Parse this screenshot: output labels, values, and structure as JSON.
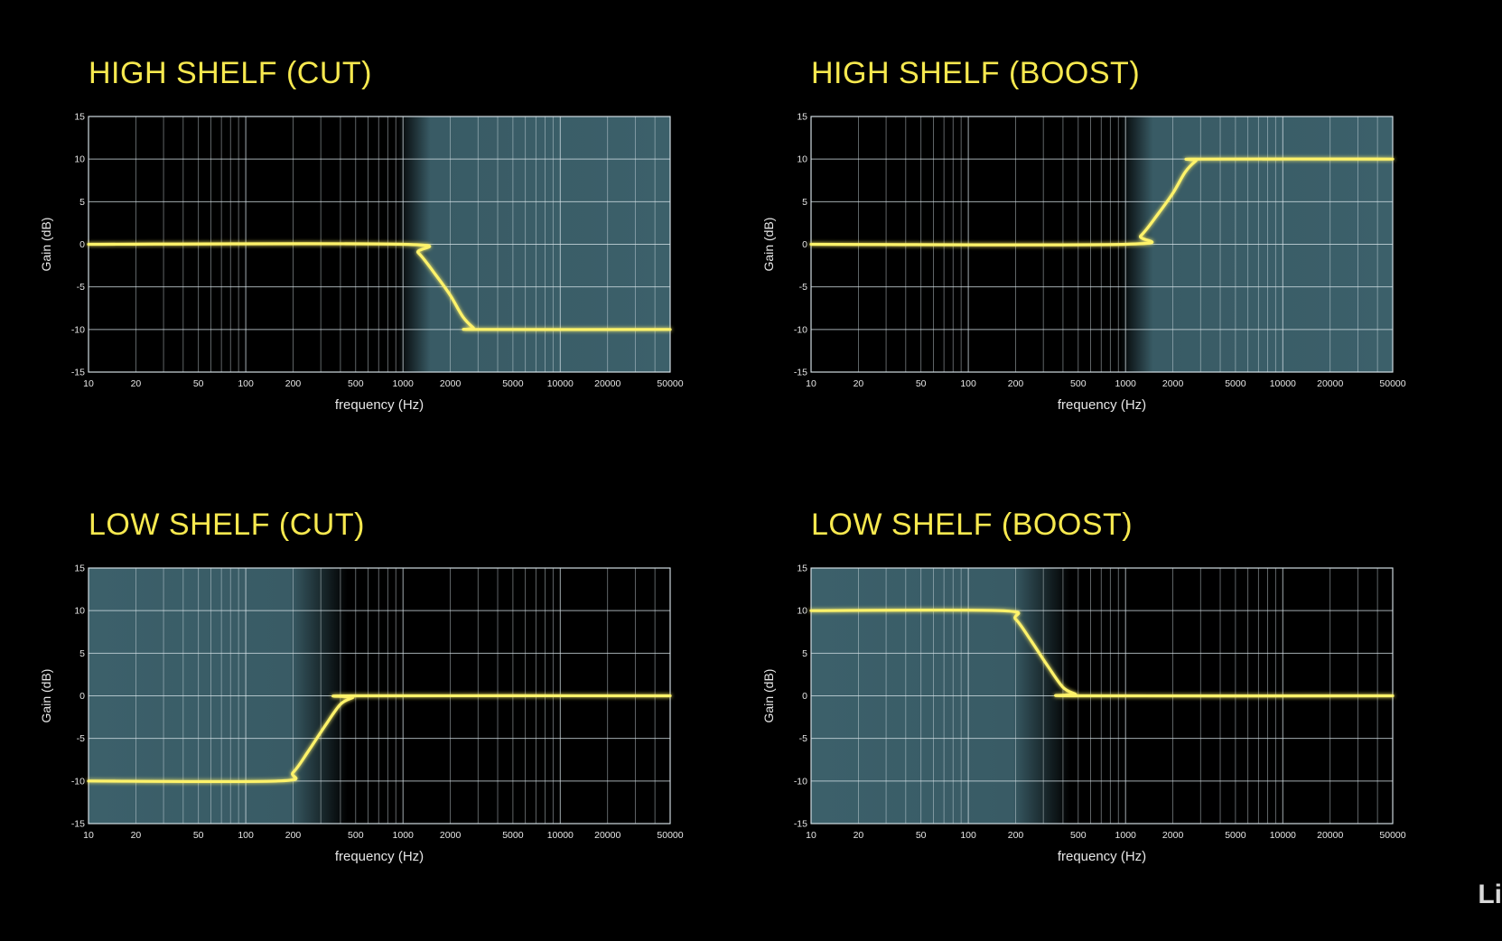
{
  "chart_data": [
    {
      "type": "line",
      "title": "HIGH SHELF (CUT)",
      "xlabel": "frequency (Hz)",
      "ylabel": "Gain (dB)",
      "x_scale": "log",
      "xlim": [
        10,
        50000
      ],
      "ylim": [
        -15,
        15
      ],
      "x_ticks": [
        "10",
        "20",
        "50",
        "100",
        "200",
        "500",
        "1000",
        "2000",
        "5000",
        "10000",
        "20000",
        "50000"
      ],
      "y_ticks": [
        "15",
        "10",
        "5",
        "0",
        "-5",
        "-10",
        "-15"
      ],
      "grid": true,
      "shaded_band": "1000-50000 Hz",
      "series": [
        {
          "x": [
            10,
            1000,
            1250,
            1600,
            2000,
            2400,
            2800,
            3000,
            50000
          ],
          "y": [
            0,
            0,
            -1,
            -3.5,
            -6,
            -8.5,
            -9.8,
            -10,
            -10
          ]
        }
      ]
    },
    {
      "type": "line",
      "title": "HIGH SHELF (BOOST)",
      "xlabel": "frequency (Hz)",
      "ylabel": "Gain (dB)",
      "x_scale": "log",
      "xlim": [
        10,
        50000
      ],
      "ylim": [
        -15,
        15
      ],
      "x_ticks": [
        "10",
        "20",
        "50",
        "100",
        "200",
        "500",
        "1000",
        "2000",
        "5000",
        "10000",
        "20000",
        "50000"
      ],
      "y_ticks": [
        "15",
        "10",
        "5",
        "0",
        "-5",
        "-10",
        "-15"
      ],
      "grid": true,
      "shaded_band": "1000-50000 Hz",
      "series": [
        {
          "x": [
            10,
            1000,
            1250,
            1600,
            2000,
            2400,
            2800,
            3000,
            50000
          ],
          "y": [
            0,
            0,
            1,
            3.5,
            6,
            8.5,
            9.8,
            10,
            10
          ]
        }
      ]
    },
    {
      "type": "line",
      "title": "LOW SHELF (CUT)",
      "xlabel": "frequency (Hz)",
      "ylabel": "Gain (dB)",
      "x_scale": "log",
      "xlim": [
        10,
        50000
      ],
      "ylim": [
        -15,
        15
      ],
      "x_ticks": [
        "10",
        "20",
        "50",
        "100",
        "200",
        "500",
        "1000",
        "2000",
        "5000",
        "10000",
        "20000",
        "50000"
      ],
      "y_ticks": [
        "15",
        "10",
        "5",
        "0",
        "-5",
        "-10",
        "-15"
      ],
      "grid": true,
      "shaded_band": "10-200 Hz",
      "series": [
        {
          "x": [
            10,
            160,
            200,
            250,
            320,
            400,
            480,
            500,
            50000
          ],
          "y": [
            -10,
            -10,
            -9,
            -6.5,
            -3.5,
            -1,
            -0.2,
            0,
            0
          ]
        }
      ]
    },
    {
      "type": "line",
      "title": "LOW SHELF (BOOST)",
      "xlabel": "frequency (Hz)",
      "ylabel": "Gain (dB)",
      "x_scale": "log",
      "xlim": [
        10,
        50000
      ],
      "ylim": [
        -15,
        15
      ],
      "x_ticks": [
        "10",
        "20",
        "50",
        "100",
        "200",
        "500",
        "1000",
        "2000",
        "5000",
        "10000",
        "20000",
        "50000"
      ],
      "y_ticks": [
        "15",
        "10",
        "5",
        "0",
        "-5",
        "-10",
        "-15"
      ],
      "grid": true,
      "shaded_band": "10-200 Hz",
      "series": [
        {
          "x": [
            10,
            160,
            200,
            250,
            320,
            400,
            480,
            500,
            50000
          ],
          "y": [
            10,
            10,
            9,
            6.5,
            3.5,
            1,
            0.2,
            0,
            0
          ]
        }
      ]
    }
  ],
  "colors": {
    "background": "#000000",
    "title": "#f7e94f",
    "curve": "#fff36a",
    "grid": "#d8e4ea",
    "axis_text": "#e6e6e6",
    "band_fill": "#3f6570"
  },
  "watermark": "Li"
}
